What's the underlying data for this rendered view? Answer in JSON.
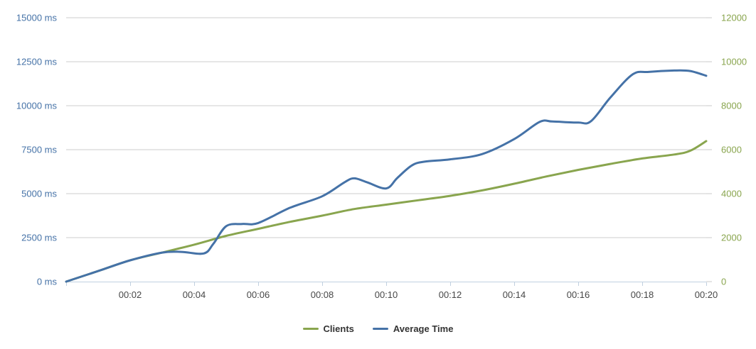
{
  "chart_data": {
    "type": "line",
    "title": "",
    "grid": true,
    "legend_position": "bottom-center",
    "background_color": "#FFFFFF",
    "colors": {
      "grid_line": "#CCCCCC",
      "axis_line": "#C0D0E0",
      "x_tick": "#C0D0E0",
      "right_tick": "#C8C8C8",
      "x_label_text": "#474747",
      "legend_text": "#333333"
    },
    "x_axis": {
      "unit": "mm:ss",
      "min_minutes": 0,
      "max_minutes": 20,
      "tick_interval_minutes": 2,
      "tick_labels": [
        "00:02",
        "00:04",
        "00:06",
        "00:08",
        "00:10",
        "00:12",
        "00:14",
        "00:16",
        "00:18",
        "00:20"
      ]
    },
    "y_axis_left": {
      "unit": "ms",
      "min": 0,
      "max": 15000,
      "tick_step": 2500,
      "tick_labels": [
        "0 ms",
        "2500 ms",
        "5000 ms",
        "7500 ms",
        "10000 ms",
        "12500 ms",
        "15000 ms"
      ],
      "label_color": "#4572A7"
    },
    "y_axis_right": {
      "unit": "clients",
      "min": 0,
      "max": 12000,
      "tick_step": 2000,
      "tick_labels": [
        "0",
        "2000",
        "4000",
        "6000",
        "8000",
        "10000",
        "12000"
      ],
      "label_color": "#89A54E"
    },
    "series": [
      {
        "name": "Clients",
        "axis": "right",
        "color": "#89A54E",
        "points": [
          [
            0,
            0
          ],
          [
            1,
            480
          ],
          [
            2,
            970
          ],
          [
            3,
            1320
          ],
          [
            4,
            1680
          ],
          [
            5,
            2080
          ],
          [
            6,
            2400
          ],
          [
            7,
            2720
          ],
          [
            8,
            3000
          ],
          [
            9,
            3300
          ],
          [
            10,
            3500
          ],
          [
            11,
            3700
          ],
          [
            12,
            3900
          ],
          [
            13,
            4150
          ],
          [
            14,
            4450
          ],
          [
            15,
            4780
          ],
          [
            16,
            5080
          ],
          [
            17,
            5350
          ],
          [
            18,
            5600
          ],
          [
            19,
            5780
          ],
          [
            19.5,
            5950
          ],
          [
            20,
            6390
          ]
        ]
      },
      {
        "name": "Average Time",
        "axis": "left",
        "color": "#4572A7",
        "points": [
          [
            0,
            0
          ],
          [
            1,
            600
          ],
          [
            2,
            1210
          ],
          [
            3,
            1650
          ],
          [
            3.6,
            1690
          ],
          [
            4.3,
            1600
          ],
          [
            4.6,
            2150
          ],
          [
            5,
            3150
          ],
          [
            5.5,
            3280
          ],
          [
            6,
            3330
          ],
          [
            7,
            4200
          ],
          [
            8,
            4850
          ],
          [
            8.7,
            5650
          ],
          [
            9,
            5870
          ],
          [
            9.4,
            5650
          ],
          [
            10,
            5300
          ],
          [
            10.35,
            5900
          ],
          [
            10.8,
            6600
          ],
          [
            11.2,
            6820
          ],
          [
            12,
            6950
          ],
          [
            13,
            7250
          ],
          [
            14,
            8100
          ],
          [
            14.8,
            9080
          ],
          [
            15.2,
            9100
          ],
          [
            16,
            9040
          ],
          [
            16.4,
            9120
          ],
          [
            17,
            10450
          ],
          [
            17.7,
            11780
          ],
          [
            18.2,
            11920
          ],
          [
            19,
            12000
          ],
          [
            19.5,
            11970
          ],
          [
            20,
            11700
          ]
        ]
      }
    ],
    "legend": [
      {
        "label": "Clients",
        "color": "#89A54E"
      },
      {
        "label": "Average Time",
        "color": "#4572A7"
      }
    ]
  }
}
